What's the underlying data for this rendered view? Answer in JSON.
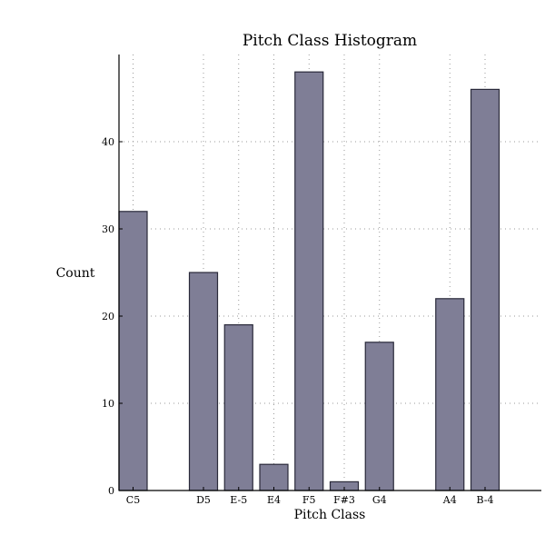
{
  "chart_data": {
    "type": "bar",
    "title": "Pitch Class Histogram",
    "xlabel": "Pitch Class",
    "ylabel": "Count",
    "slot_count": 12,
    "categories": [
      {
        "label": "C5",
        "slot": 0,
        "value": 32
      },
      {
        "label": "D5",
        "slot": 2,
        "value": 25
      },
      {
        "label": "E-5",
        "slot": 3,
        "value": 19
      },
      {
        "label": "E4",
        "slot": 4,
        "value": 3
      },
      {
        "label": "F5",
        "slot": 5,
        "value": 48
      },
      {
        "label": "F#3",
        "slot": 6,
        "value": 1
      },
      {
        "label": "G4",
        "slot": 7,
        "value": 17
      },
      {
        "label": "A4",
        "slot": 9,
        "value": 22
      },
      {
        "label": "B-4",
        "slot": 10,
        "value": 46
      }
    ],
    "ylim": [
      0,
      50
    ],
    "yticks": [
      0,
      10,
      20,
      30,
      40
    ],
    "grid": true,
    "colors": {
      "bar_fill": "#7f7e96",
      "bar_edge": "#2a2a3a"
    }
  }
}
